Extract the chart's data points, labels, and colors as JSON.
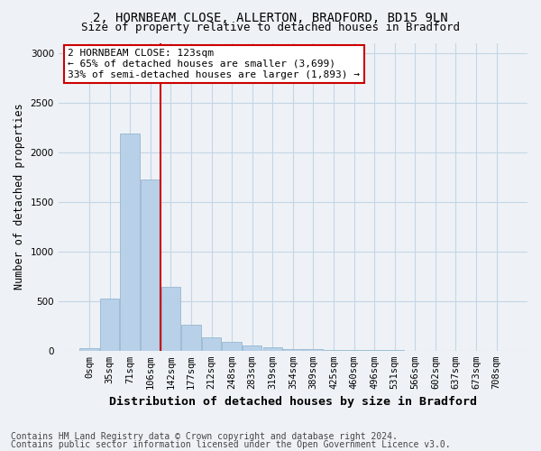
{
  "title_line1": "2, HORNBEAM CLOSE, ALLERTON, BRADFORD, BD15 9LN",
  "title_line2": "Size of property relative to detached houses in Bradford",
  "xlabel": "Distribution of detached houses by size in Bradford",
  "ylabel": "Number of detached properties",
  "categories": [
    "0sqm",
    "35sqm",
    "71sqm",
    "106sqm",
    "142sqm",
    "177sqm",
    "212sqm",
    "248sqm",
    "283sqm",
    "319sqm",
    "354sqm",
    "389sqm",
    "425sqm",
    "460sqm",
    "496sqm",
    "531sqm",
    "566sqm",
    "602sqm",
    "637sqm",
    "673sqm",
    "708sqm"
  ],
  "values": [
    25,
    520,
    2190,
    1720,
    640,
    260,
    135,
    90,
    50,
    30,
    20,
    12,
    8,
    5,
    5,
    3,
    2,
    1,
    1,
    1,
    0
  ],
  "bar_color": "#b8d0e8",
  "bar_edge_color": "#8ab0cc",
  "vline_x": 3.5,
  "vline_color": "#cc0000",
  "annotation_text": "2 HORNBEAM CLOSE: 123sqm\n← 65% of detached houses are smaller (3,699)\n33% of semi-detached houses are larger (1,893) →",
  "annotation_box_facecolor": "#ffffff",
  "annotation_box_edgecolor": "#cc0000",
  "ylim": [
    0,
    3100
  ],
  "yticks": [
    0,
    500,
    1000,
    1500,
    2000,
    2500,
    3000
  ],
  "footnote1": "Contains HM Land Registry data © Crown copyright and database right 2024.",
  "footnote2": "Contains public sector information licensed under the Open Government Licence v3.0.",
  "bg_color": "#eef2f6",
  "plot_bg_color": "#eef2f6",
  "grid_color": "#c5d5e5",
  "title_fontsize": 10,
  "subtitle_fontsize": 9,
  "xlabel_fontsize": 9.5,
  "ylabel_fontsize": 8.5,
  "tick_fontsize": 7.5,
  "annotation_fontsize": 8,
  "footnote_fontsize": 7
}
